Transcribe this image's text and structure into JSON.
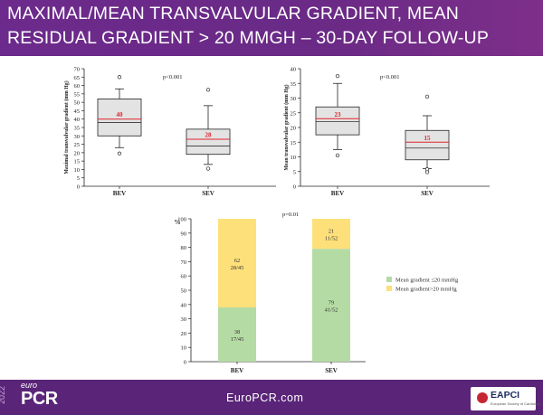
{
  "header": {
    "line1": "MAXIMAL/MEAN TRANSVALVULAR GRADIENT, MEAN",
    "line2": "RESIDUAL GRADIENT > 20 MMGH – 30-DAY FOLLOW-UP",
    "background_color": "#6c2a8c"
  },
  "footer": {
    "logo_top": "euro",
    "logo_main": "PCR",
    "logo_year": "2022",
    "website": "EuroPCR.com",
    "badge": "EAPCI",
    "badge_sub": "European Society of Cardiology",
    "background_color": "#5a2478"
  },
  "chart_data": [
    {
      "type": "boxplot",
      "ylabel": "Maximal transvalvular gradient (mm Hg)",
      "annotation": "p<0.001",
      "ylim": [
        0,
        70
      ],
      "yticks": [
        0,
        5,
        10,
        15,
        20,
        25,
        30,
        35,
        40,
        45,
        50,
        55,
        60,
        65,
        70
      ],
      "categories": [
        "BEV",
        "SEV"
      ],
      "boxes": [
        {
          "q1": 30,
          "median": 38,
          "mean": 40,
          "mean_label": "40",
          "q3": 52,
          "whisker_low": 23,
          "whisker_high": 58,
          "outliers": [
            19.5,
            65
          ]
        },
        {
          "q1": 19,
          "median": 24,
          "mean": 28,
          "mean_label": "28",
          "q3": 34,
          "whisker_low": 13,
          "whisker_high": 48,
          "outliers": [
            10.5,
            57.5
          ]
        }
      ],
      "median_color": "#333333",
      "mean_color": "#e0242c"
    },
    {
      "type": "boxplot",
      "ylabel": "Mean transvalvular gradient (mm Hg)",
      "annotation": "p<0.001",
      "ylim": [
        0,
        40
      ],
      "yticks": [
        0,
        5,
        10,
        15,
        20,
        25,
        30,
        35,
        40
      ],
      "categories": [
        "BEV",
        "SEV"
      ],
      "boxes": [
        {
          "q1": 17.5,
          "median": 22,
          "mean": 23,
          "mean_label": "23",
          "q3": 27,
          "whisker_low": 12.5,
          "whisker_high": 35,
          "outliers": [
            10.5,
            37.5
          ]
        },
        {
          "q1": 9,
          "median": 13,
          "mean": 15,
          "mean_label": "15",
          "q3": 19,
          "whisker_low": 6,
          "whisker_high": 24,
          "outliers": [
            4.8,
            5.8,
            30.5
          ]
        }
      ],
      "median_color": "#333333",
      "mean_color": "#e0242c"
    },
    {
      "type": "stacked-bar",
      "ylabel": "%",
      "annotation": "p=0.01",
      "ylim": [
        0,
        100
      ],
      "yticks": [
        0,
        10,
        20,
        30,
        40,
        50,
        60,
        70,
        80,
        90,
        100
      ],
      "categories": [
        "BEV",
        "SEV"
      ],
      "series": [
        {
          "name": "Mean gradient ≤20 mmHg",
          "color": "#b5dba4",
          "values": [
            38,
            79
          ],
          "labels": [
            "38",
            "79"
          ],
          "fractions": [
            "17/45",
            "41/52"
          ]
        },
        {
          "name": "Mean gradient>20 mmHg",
          "color": "#fde07a",
          "values": [
            62,
            21
          ],
          "labels": [
            "62",
            "21"
          ],
          "fractions": [
            "28/45",
            "11/52"
          ]
        }
      ],
      "legend_position": "right"
    }
  ]
}
